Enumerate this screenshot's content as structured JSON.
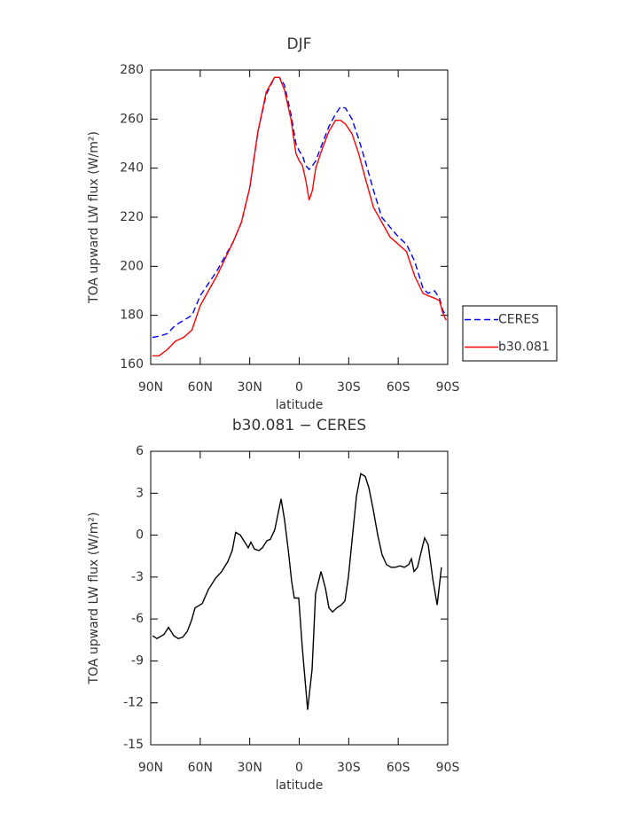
{
  "chart_data": [
    {
      "type": "line",
      "title": "DJF",
      "xlabel": "latitude",
      "ylabel": "TOA upward LW flux (W/m²)",
      "x": [
        89,
        85,
        80,
        75,
        70,
        65,
        60,
        55,
        50,
        45,
        40,
        35,
        30,
        25,
        20,
        15,
        12,
        9,
        5,
        2,
        0,
        -2,
        -4,
        -6,
        -8,
        -10,
        -14,
        -18,
        -22,
        -25,
        -28,
        -32,
        -36,
        -40,
        -45,
        -50,
        -55,
        -60,
        -65,
        -70,
        -75,
        -78,
        -82,
        -85,
        -87,
        -89
      ],
      "series": [
        {
          "name": "CERES",
          "color": "#0000ff",
          "line_style": "dashed",
          "values": [
            171,
            171.5,
            172.5,
            176,
            178,
            180,
            188,
            193,
            198,
            204,
            210,
            218,
            232,
            255,
            270,
            277,
            277,
            274,
            262,
            250,
            247,
            245,
            241,
            239.5,
            241,
            243,
            250,
            257,
            262,
            265,
            264.5,
            260,
            252,
            243,
            231,
            220,
            216,
            212,
            209,
            202,
            191,
            189,
            190,
            187,
            182,
            180
          ]
        },
        {
          "name": "b30.081",
          "color": "#ff0000",
          "line_style": "solid",
          "values": [
            163.5,
            163.5,
            166,
            169.5,
            171,
            174,
            184,
            190,
            196,
            203,
            210,
            218,
            232,
            255,
            271,
            277,
            277,
            272,
            260,
            246,
            243,
            241,
            235,
            227,
            231,
            240,
            248,
            255,
            259.5,
            259.5,
            258,
            254,
            246,
            236,
            224,
            218,
            212,
            209,
            206,
            196,
            189,
            188,
            187,
            186,
            181,
            178
          ]
        }
      ],
      "xlim": [
        90,
        -90
      ],
      "xticks": [
        {
          "value": 90,
          "label": "90N"
        },
        {
          "value": 60,
          "label": "60N"
        },
        {
          "value": 30,
          "label": "30N"
        },
        0,
        {
          "value": -30,
          "label": "30S"
        },
        {
          "value": -60,
          "label": "60S"
        },
        {
          "value": -90,
          "label": "90S"
        }
      ],
      "ylim": [
        160,
        280
      ],
      "yticks": [
        160,
        180,
        200,
        220,
        240,
        260,
        280
      ],
      "legend": "right"
    },
    {
      "type": "line",
      "title": "b30.081 − CERES",
      "xlabel": "latitude",
      "ylabel": "TOA upward LW flux (W/m²)",
      "x": [
        88.9,
        86.2,
        81.9,
        79.2,
        76.0,
        73.3,
        70.6,
        67.9,
        65.3,
        63.1,
        58.8,
        55.1,
        50.8,
        47.0,
        43.3,
        40.6,
        38.5,
        35.7,
        33.0,
        30.9,
        29.3,
        27.1,
        24.4,
        22.3,
        19.6,
        17.5,
        14.8,
        11.0,
        8.9,
        6.7,
        4.6,
        3.0,
        0.3,
        -1.9,
        -5.1,
        -7.8,
        -9.9,
        -13.2,
        -15.9,
        -18.0,
        -20.2,
        -22.8,
        -25.5,
        -27.7,
        -29.8,
        -32.0,
        -34.7,
        -37.3,
        -40.0,
        -42.2,
        -44.9,
        -47.6,
        -50.2,
        -52.9,
        -55.6,
        -58.3,
        -61.0,
        -63.7,
        -66.4,
        -68.0,
        -69.6,
        -71.7,
        -73.9,
        -76.0,
        -78.2,
        -80.9,
        -83.6,
        -86.2
      ],
      "series": [
        {
          "name": "b30.081 − CERES",
          "color": "#000000",
          "line_style": "solid",
          "values": [
            -7.2,
            -7.4,
            -7.1,
            -6.6,
            -7.2,
            -7.4,
            -7.3,
            -6.9,
            -6.1,
            -5.2,
            -4.9,
            -3.9,
            -3.1,
            -2.6,
            -1.9,
            -1.1,
            0.2,
            0.0,
            -0.5,
            -0.9,
            -0.5,
            -1.0,
            -1.1,
            -0.9,
            -0.4,
            -0.3,
            0.4,
            2.6,
            1.1,
            -1.0,
            -3.3,
            -4.5,
            -4.5,
            -8.1,
            -12.5,
            -9.6,
            -4.2,
            -2.6,
            -3.8,
            -5.2,
            -5.5,
            -5.2,
            -5.0,
            -4.7,
            -3.0,
            -0.4,
            2.8,
            4.4,
            4.2,
            3.4,
            1.8,
            0.0,
            -1.4,
            -2.1,
            -2.3,
            -2.3,
            -2.2,
            -2.3,
            -2.1,
            -1.7,
            -2.6,
            -2.3,
            -1.2,
            -0.2,
            -0.7,
            -3.1,
            -5.0,
            -2.3
          ]
        }
      ],
      "xlim": [
        90,
        -90
      ],
      "xticks": [
        {
          "value": 90,
          "label": "90N"
        },
        {
          "value": 60,
          "label": "60N"
        },
        {
          "value": 30,
          "label": "30N"
        },
        0,
        {
          "value": -30,
          "label": "30S"
        },
        {
          "value": -60,
          "label": "60S"
        },
        {
          "value": -90,
          "label": "90S"
        }
      ],
      "ylim": [
        -15,
        6
      ],
      "yticks": [
        -15,
        -12,
        -9,
        -6,
        -3,
        0,
        3,
        6
      ]
    }
  ]
}
